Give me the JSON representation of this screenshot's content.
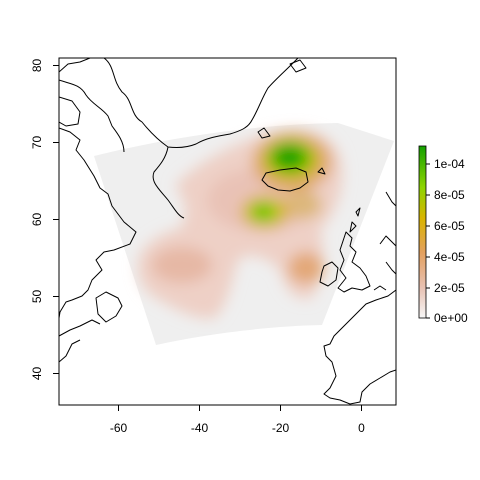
{
  "figure": {
    "x_ticks": [
      "-60",
      "-40",
      "-20",
      "0"
    ],
    "y_ticks": [
      "40",
      "50",
      "60",
      "70",
      "80"
    ],
    "legend_ticks": [
      "1e-04",
      "8e-05",
      "6e-05",
      "4e-05",
      "2e-05",
      "0e+00"
    ]
  },
  "chart_data": {
    "type": "heatmap",
    "title": "",
    "xlabel": "",
    "ylabel": "",
    "xlim": [
      -75,
      8
    ],
    "ylim": [
      35.5,
      81
    ],
    "x_ticks": [
      -60,
      -40,
      -20,
      0
    ],
    "y_ticks": [
      40,
      50,
      60,
      70,
      80
    ],
    "grid": false,
    "colorbar": {
      "range": [
        0,
        0.00011
      ],
      "ticks": [
        0,
        2e-05,
        4e-05,
        6e-05,
        8e-05,
        0.0001
      ],
      "colors": [
        "#f7f7f7",
        "#e8c1b2",
        "#e3a05f",
        "#d9b400",
        "#8dd400",
        "#14a000"
      ]
    },
    "domain_fill_color": "#efefef",
    "hotspots": [
      {
        "lon": -18,
        "lat": 67.5,
        "value": 0.00011
      },
      {
        "lon": -24,
        "lat": 60.5,
        "value": 8e-05
      },
      {
        "lon": -13,
        "lat": 62,
        "value": 5e-05
      },
      {
        "lon": -15,
        "lat": 53.5,
        "value": 4e-05
      },
      {
        "lon": -40,
        "lat": 53,
        "value": 3e-05
      }
    ]
  }
}
